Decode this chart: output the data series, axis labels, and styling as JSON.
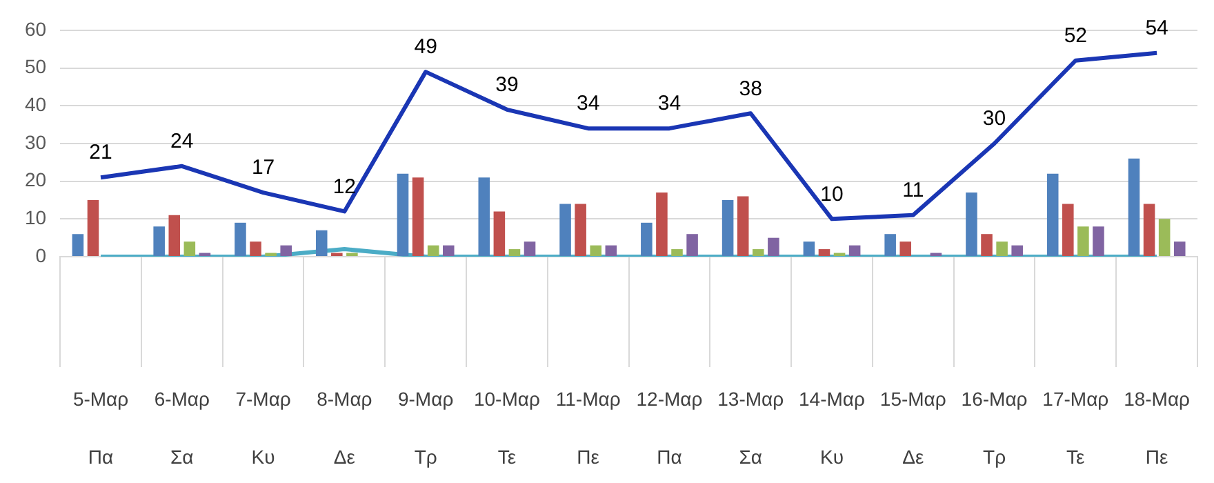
{
  "chart_data": {
    "type": "bar",
    "categories": [
      "5-Μαρ\nΠα",
      "6-Μαρ\nΣα",
      "7-Μαρ\nΚυ",
      "8-Μαρ\nΔε",
      "9-Μαρ\nΤρ",
      "10-Μαρ\nΤε",
      "11-Μαρ\nΠε",
      "12-Μαρ\nΠα",
      "13-Μαρ\nΣα",
      "14-Μαρ\nΚυ",
      "15-Μαρ\nΔε",
      "16-Μαρ\nΤρ",
      "17-Μαρ\nΤε",
      "18-Μαρ\nΠε"
    ],
    "series": [
      {
        "color": "#4f81bd",
        "values": [
          6,
          8,
          9,
          7,
          22,
          21,
          14,
          9,
          15,
          4,
          6,
          17,
          22,
          26
        ]
      },
      {
        "color": "#c0504d",
        "values": [
          15,
          11,
          4,
          1,
          21,
          12,
          14,
          17,
          16,
          2,
          4,
          6,
          14,
          14
        ]
      },
      {
        "color": "#9bbb59",
        "values": [
          0,
          4,
          1,
          1,
          3,
          2,
          3,
          2,
          2,
          1,
          0,
          4,
          8,
          10
        ]
      },
      {
        "color": "#8064a2",
        "values": [
          0,
          1,
          3,
          0,
          3,
          4,
          3,
          6,
          5,
          3,
          1,
          3,
          8,
          4
        ]
      },
      {
        "type": "line",
        "color": "#4bacc6",
        "values": [
          0,
          0,
          0,
          2,
          0,
          0,
          0,
          0,
          0,
          0,
          0,
          0,
          0,
          0
        ]
      },
      {
        "type": "line",
        "color": "#1a36b4",
        "values": [
          21,
          24,
          17,
          12,
          49,
          39,
          34,
          34,
          38,
          10,
          11,
          30,
          52,
          54
        ],
        "value_labels": [
          "21",
          "24",
          "17",
          "12",
          "49",
          "39",
          "34",
          "34",
          "38",
          "10",
          "11",
          "30",
          "52",
          "54"
        ]
      }
    ],
    "ylim": [
      0,
      60
    ],
    "yticks": [
      0,
      10,
      20,
      30,
      40,
      50,
      60
    ],
    "grid": "y",
    "legend": false,
    "marker": "none",
    "line_style": "solid"
  }
}
